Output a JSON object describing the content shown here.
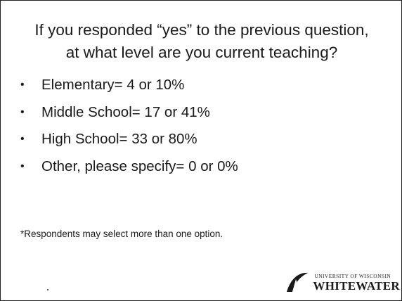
{
  "slide": {
    "title_line1": "If you responded “yes” to the previous question,",
    "title_line2": "at what level are you current teaching?",
    "bullets": [
      {
        "text": "Elementary= 4 or 10%"
      },
      {
        "text": "Middle School= 17 or 41%"
      },
      {
        "text": "High School= 33 or 80%"
      },
      {
        "text": "Other, please specify= 0 or 0%"
      }
    ],
    "bullet_glyph": "•",
    "footnote": "*Respondents may select more than one option."
  },
  "logo": {
    "small_text": "University of Wisconsin",
    "big_text": "WHITEWATER",
    "icon": "uw-whitewater-w-mark-icon"
  }
}
